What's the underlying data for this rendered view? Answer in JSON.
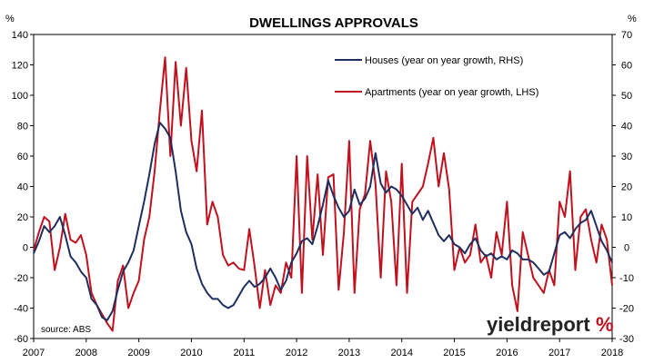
{
  "chart_data": {
    "type": "line",
    "title": "DWELLINGS APPROVALS",
    "left_unit": "%",
    "right_unit": "%",
    "xlim": [
      2007,
      2018
    ],
    "x_ticks": [
      "2007",
      "2008",
      "2009",
      "2010",
      "2011",
      "2012",
      "2013",
      "2014",
      "2015",
      "2016",
      "2017",
      "2018"
    ],
    "ylim_left": [
      -60,
      140
    ],
    "ylim_right": [
      -30,
      70
    ],
    "y_ticks_left": [
      "140",
      "120",
      "100",
      "80",
      "60",
      "40",
      "20",
      "0",
      "-20",
      "-40",
      "-60"
    ],
    "y_ticks_right": [
      "70",
      "60",
      "50",
      "40",
      "30",
      "20",
      "10",
      "0",
      "-10",
      "-20",
      "-30"
    ],
    "grid": false,
    "legend_position": "top-right",
    "source": "source: ABS",
    "logo": {
      "text": "yieldreport",
      "symbol": "%"
    },
    "series": [
      {
        "name": "Houses (year on year growth, RHS)",
        "axis": "right",
        "color": "#1f2e5e",
        "points": [
          [
            2007.0,
            -2
          ],
          [
            2007.1,
            2
          ],
          [
            2007.2,
            7
          ],
          [
            2007.3,
            5
          ],
          [
            2007.4,
            7
          ],
          [
            2007.5,
            10
          ],
          [
            2007.6,
            4
          ],
          [
            2007.7,
            -3
          ],
          [
            2007.8,
            -5
          ],
          [
            2007.9,
            -8
          ],
          [
            2008.0,
            -10
          ],
          [
            2008.1,
            -17
          ],
          [
            2008.2,
            -19
          ],
          [
            2008.3,
            -23
          ],
          [
            2008.4,
            -24
          ],
          [
            2008.5,
            -21
          ],
          [
            2008.6,
            -14
          ],
          [
            2008.7,
            -8
          ],
          [
            2008.8,
            -5
          ],
          [
            2008.9,
            -1
          ],
          [
            2009.0,
            7
          ],
          [
            2009.1,
            15
          ],
          [
            2009.2,
            24
          ],
          [
            2009.3,
            34
          ],
          [
            2009.4,
            41
          ],
          [
            2009.5,
            39
          ],
          [
            2009.6,
            36
          ],
          [
            2009.7,
            25
          ],
          [
            2009.8,
            12
          ],
          [
            2009.9,
            5
          ],
          [
            2010.0,
            1
          ],
          [
            2010.1,
            -7
          ],
          [
            2010.2,
            -12
          ],
          [
            2010.3,
            -15
          ],
          [
            2010.4,
            -17
          ],
          [
            2010.5,
            -17
          ],
          [
            2010.6,
            -19
          ],
          [
            2010.7,
            -20
          ],
          [
            2010.8,
            -19
          ],
          [
            2010.9,
            -16
          ],
          [
            2011.0,
            -13
          ],
          [
            2011.1,
            -11
          ],
          [
            2011.2,
            -13
          ],
          [
            2011.3,
            -12
          ],
          [
            2011.4,
            -10
          ],
          [
            2011.5,
            -7
          ],
          [
            2011.6,
            -10
          ],
          [
            2011.7,
            -14
          ],
          [
            2011.8,
            -11
          ],
          [
            2011.9,
            -5
          ],
          [
            2012.0,
            -2
          ],
          [
            2012.1,
            2
          ],
          [
            2012.2,
            3
          ],
          [
            2012.3,
            1
          ],
          [
            2012.4,
            7
          ],
          [
            2012.5,
            14
          ],
          [
            2012.6,
            22
          ],
          [
            2012.7,
            17
          ],
          [
            2012.8,
            13
          ],
          [
            2012.9,
            10
          ],
          [
            2013.0,
            12
          ],
          [
            2013.1,
            19
          ],
          [
            2013.2,
            14
          ],
          [
            2013.3,
            16
          ],
          [
            2013.4,
            20
          ],
          [
            2013.5,
            31
          ],
          [
            2013.6,
            21
          ],
          [
            2013.7,
            18
          ],
          [
            2013.8,
            20
          ],
          [
            2013.9,
            19
          ],
          [
            2014.0,
            17
          ],
          [
            2014.1,
            14
          ],
          [
            2014.2,
            11
          ],
          [
            2014.3,
            13
          ],
          [
            2014.4,
            9
          ],
          [
            2014.5,
            12
          ],
          [
            2014.6,
            8
          ],
          [
            2014.7,
            4
          ],
          [
            2014.8,
            2
          ],
          [
            2014.9,
            4
          ],
          [
            2015.0,
            1
          ],
          [
            2015.1,
            0
          ],
          [
            2015.2,
            -2
          ],
          [
            2015.3,
            1
          ],
          [
            2015.4,
            3
          ],
          [
            2015.5,
            -1
          ],
          [
            2015.6,
            -3
          ],
          [
            2015.7,
            -2
          ],
          [
            2015.8,
            -4
          ],
          [
            2015.9,
            -3
          ],
          [
            2016.0,
            -4
          ],
          [
            2016.1,
            -1
          ],
          [
            2016.2,
            -2
          ],
          [
            2016.3,
            -4
          ],
          [
            2016.4,
            -4
          ],
          [
            2016.5,
            -5
          ],
          [
            2016.6,
            -7
          ],
          [
            2016.7,
            -9
          ],
          [
            2016.8,
            -8
          ],
          [
            2016.9,
            -2
          ],
          [
            2017.0,
            4
          ],
          [
            2017.1,
            5
          ],
          [
            2017.2,
            3
          ],
          [
            2017.3,
            6
          ],
          [
            2017.4,
            8
          ],
          [
            2017.5,
            9
          ],
          [
            2017.6,
            12
          ],
          [
            2017.7,
            7
          ],
          [
            2017.8,
            2
          ],
          [
            2017.9,
            -1
          ],
          [
            2018.0,
            -5
          ]
        ]
      },
      {
        "name": "Apartments (year on year growth, LHS)",
        "axis": "left",
        "color": "#c0111f",
        "points": [
          [
            2007.0,
            -2
          ],
          [
            2007.1,
            10
          ],
          [
            2007.2,
            20
          ],
          [
            2007.3,
            17
          ],
          [
            2007.4,
            -15
          ],
          [
            2007.5,
            0
          ],
          [
            2007.6,
            22
          ],
          [
            2007.7,
            5
          ],
          [
            2007.8,
            3
          ],
          [
            2007.9,
            8
          ],
          [
            2008.0,
            -5
          ],
          [
            2008.1,
            -30
          ],
          [
            2008.2,
            -38
          ],
          [
            2008.3,
            -44
          ],
          [
            2008.4,
            -50
          ],
          [
            2008.5,
            -55
          ],
          [
            2008.6,
            -22
          ],
          [
            2008.7,
            -12
          ],
          [
            2008.8,
            -40
          ],
          [
            2008.9,
            -30
          ],
          [
            2009.0,
            -22
          ],
          [
            2009.1,
            5
          ],
          [
            2009.2,
            20
          ],
          [
            2009.3,
            50
          ],
          [
            2009.4,
            90
          ],
          [
            2009.5,
            125
          ],
          [
            2009.6,
            60
          ],
          [
            2009.7,
            122
          ],
          [
            2009.8,
            80
          ],
          [
            2009.9,
            118
          ],
          [
            2010.0,
            70
          ],
          [
            2010.1,
            50
          ],
          [
            2010.2,
            90
          ],
          [
            2010.3,
            15
          ],
          [
            2010.4,
            30
          ],
          [
            2010.5,
            20
          ],
          [
            2010.6,
            -5
          ],
          [
            2010.7,
            -12
          ],
          [
            2010.8,
            -10
          ],
          [
            2010.9,
            -14
          ],
          [
            2011.0,
            -15
          ],
          [
            2011.1,
            12
          ],
          [
            2011.2,
            -12
          ],
          [
            2011.3,
            -40
          ],
          [
            2011.4,
            -15
          ],
          [
            2011.5,
            -38
          ],
          [
            2011.6,
            -25
          ],
          [
            2011.7,
            -30
          ],
          [
            2011.8,
            -10
          ],
          [
            2011.9,
            -20
          ],
          [
            2012.0,
            60
          ],
          [
            2012.1,
            -30
          ],
          [
            2012.2,
            60
          ],
          [
            2012.3,
            5
          ],
          [
            2012.4,
            48
          ],
          [
            2012.5,
            -5
          ],
          [
            2012.6,
            46
          ],
          [
            2012.7,
            48
          ],
          [
            2012.8,
            -28
          ],
          [
            2012.9,
            10
          ],
          [
            2013.0,
            70
          ],
          [
            2013.1,
            -30
          ],
          [
            2013.2,
            25
          ],
          [
            2013.3,
            35
          ],
          [
            2013.4,
            70
          ],
          [
            2013.5,
            42
          ],
          [
            2013.6,
            -20
          ],
          [
            2013.7,
            50
          ],
          [
            2013.8,
            30
          ],
          [
            2013.9,
            -25
          ],
          [
            2014.0,
            55
          ],
          [
            2014.1,
            -30
          ],
          [
            2014.2,
            30
          ],
          [
            2014.3,
            35
          ],
          [
            2014.4,
            40
          ],
          [
            2014.5,
            55
          ],
          [
            2014.6,
            72
          ],
          [
            2014.7,
            40
          ],
          [
            2014.8,
            62
          ],
          [
            2014.9,
            38
          ],
          [
            2015.0,
            -15
          ],
          [
            2015.1,
            0
          ],
          [
            2015.2,
            -10
          ],
          [
            2015.3,
            -5
          ],
          [
            2015.4,
            15
          ],
          [
            2015.5,
            -10
          ],
          [
            2015.6,
            -5
          ],
          [
            2015.7,
            -20
          ],
          [
            2015.8,
            10
          ],
          [
            2015.9,
            -5
          ],
          [
            2016.0,
            30
          ],
          [
            2016.1,
            -25
          ],
          [
            2016.2,
            -42
          ],
          [
            2016.3,
            10
          ],
          [
            2016.4,
            -5
          ],
          [
            2016.5,
            -20
          ],
          [
            2016.6,
            -25
          ],
          [
            2016.7,
            -30
          ],
          [
            2016.8,
            -15
          ],
          [
            2016.9,
            -25
          ],
          [
            2017.0,
            30
          ],
          [
            2017.1,
            20
          ],
          [
            2017.2,
            50
          ],
          [
            2017.3,
            -15
          ],
          [
            2017.4,
            20
          ],
          [
            2017.5,
            25
          ],
          [
            2017.6,
            5
          ],
          [
            2017.7,
            -10
          ],
          [
            2017.8,
            15
          ],
          [
            2017.9,
            5
          ],
          [
            2018.0,
            -25
          ]
        ]
      }
    ]
  }
}
